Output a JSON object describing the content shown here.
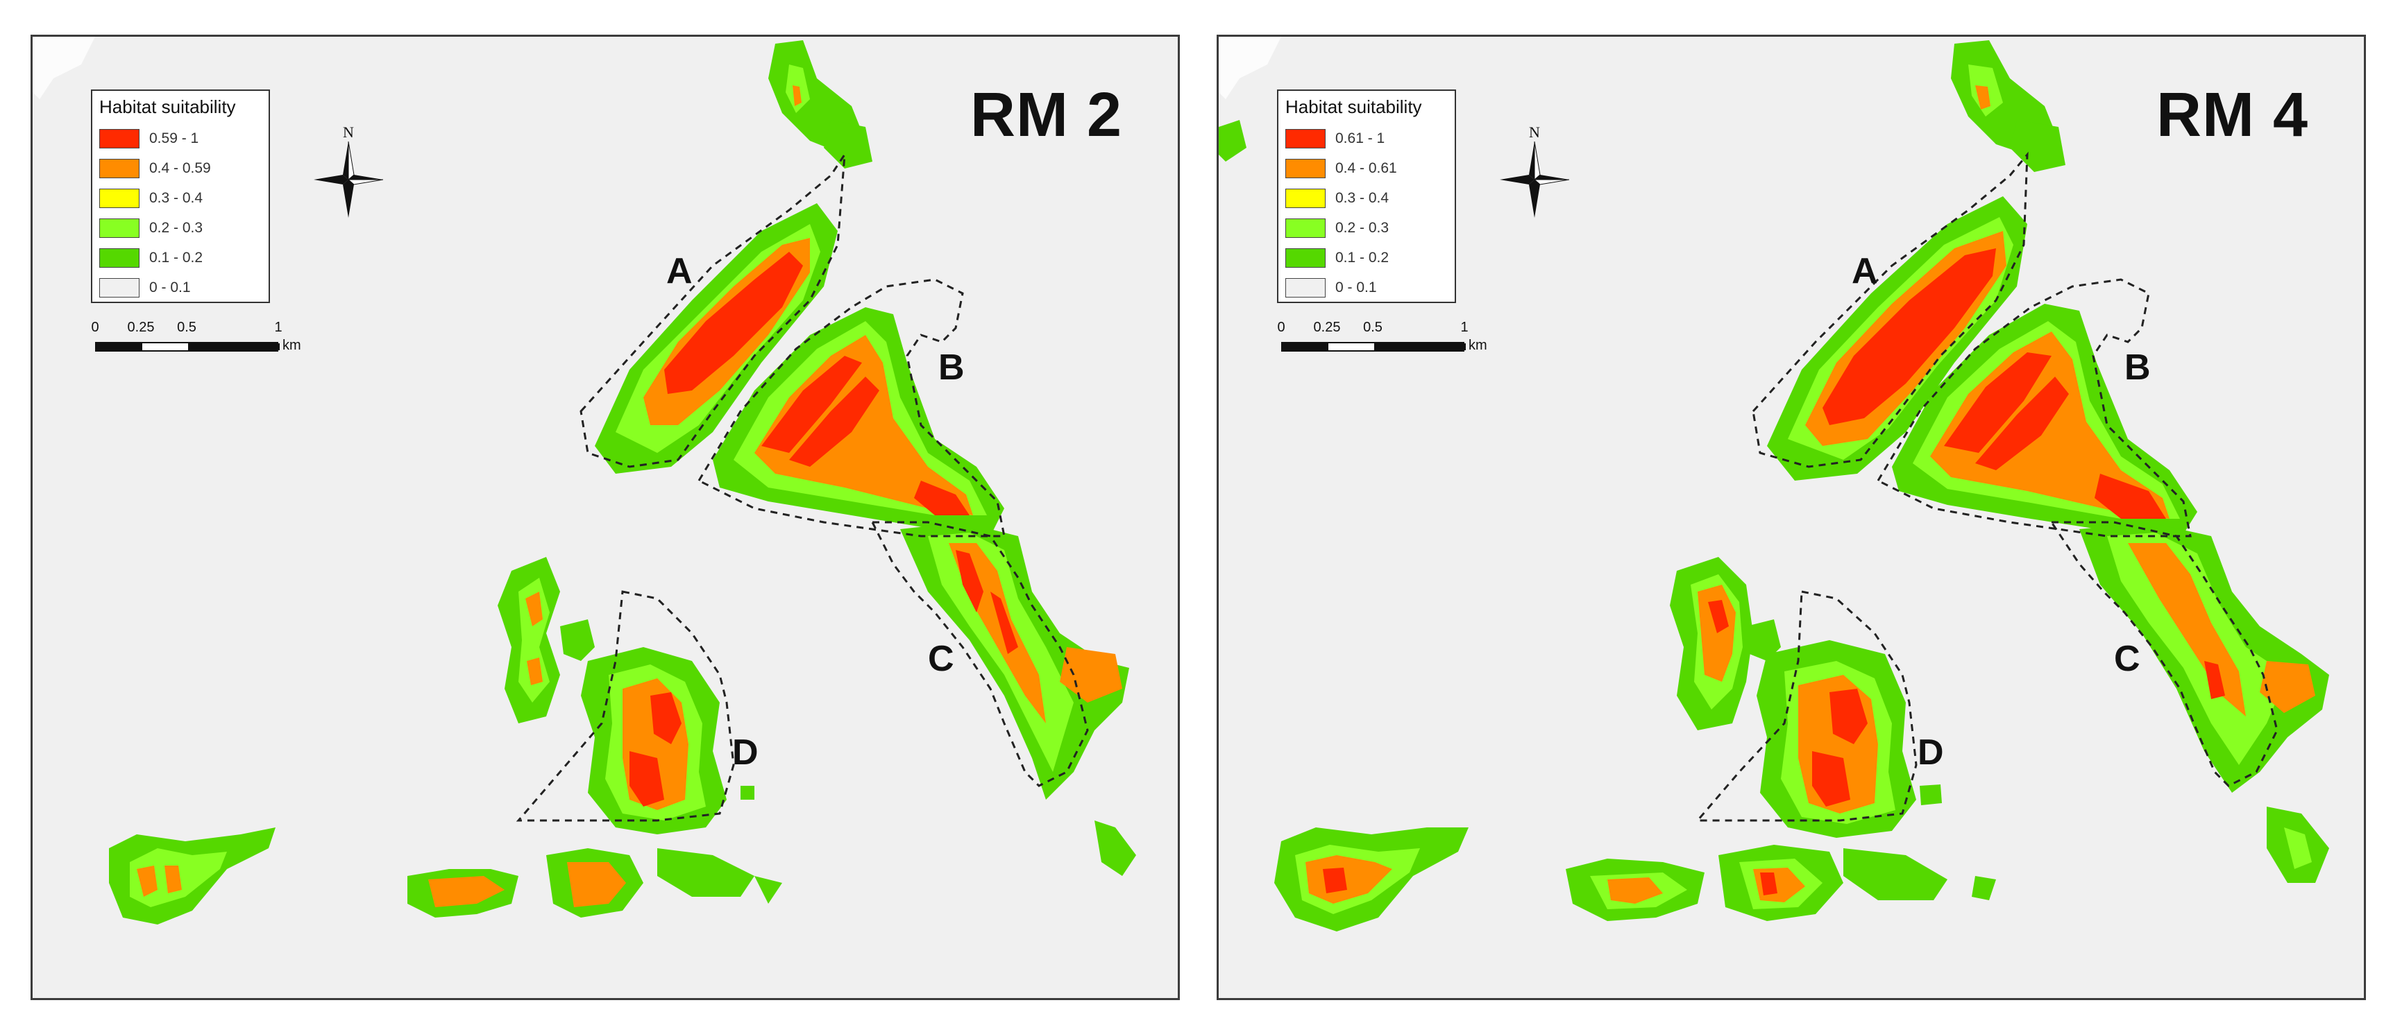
{
  "panels": [
    {
      "title": "RM 2",
      "legend": {
        "title": "Habitat suitability",
        "classes": [
          {
            "label": "0.59 - 1",
            "color": "#ff2a00"
          },
          {
            "label": "0.4 - 0.59",
            "color": "#ff8c00"
          },
          {
            "label": "0.3 - 0.4",
            "color": "#ffff00"
          },
          {
            "label": "0.2 - 0.3",
            "color": "#88ff22"
          },
          {
            "label": "0.1 - 0.2",
            "color": "#55d800"
          },
          {
            "label": "0 - 0.1",
            "color": "#f0f0f0"
          }
        ]
      },
      "scalebar": {
        "ticks": [
          "0",
          "0.25",
          "0.5",
          "1"
        ],
        "unit": "km"
      },
      "north_label": "N",
      "zones": [
        "A",
        "B",
        "C",
        "D"
      ]
    },
    {
      "title": "RM 4",
      "legend": {
        "title": "Habitat suitability",
        "classes": [
          {
            "label": "0.61 - 1",
            "color": "#ff2a00"
          },
          {
            "label": "0.4 - 0.61",
            "color": "#ff8c00"
          },
          {
            "label": "0.3 - 0.4",
            "color": "#ffff00"
          },
          {
            "label": "0.2 - 0.3",
            "color": "#88ff22"
          },
          {
            "label": "0.1 - 0.2",
            "color": "#55d800"
          },
          {
            "label": "0 - 0.1",
            "color": "#f0f0f0"
          }
        ]
      },
      "scalebar": {
        "ticks": [
          "0",
          "0.25",
          "0.5",
          "1"
        ],
        "unit": "km"
      },
      "north_label": "N",
      "zones": [
        "A",
        "B",
        "C",
        "D"
      ]
    }
  ]
}
